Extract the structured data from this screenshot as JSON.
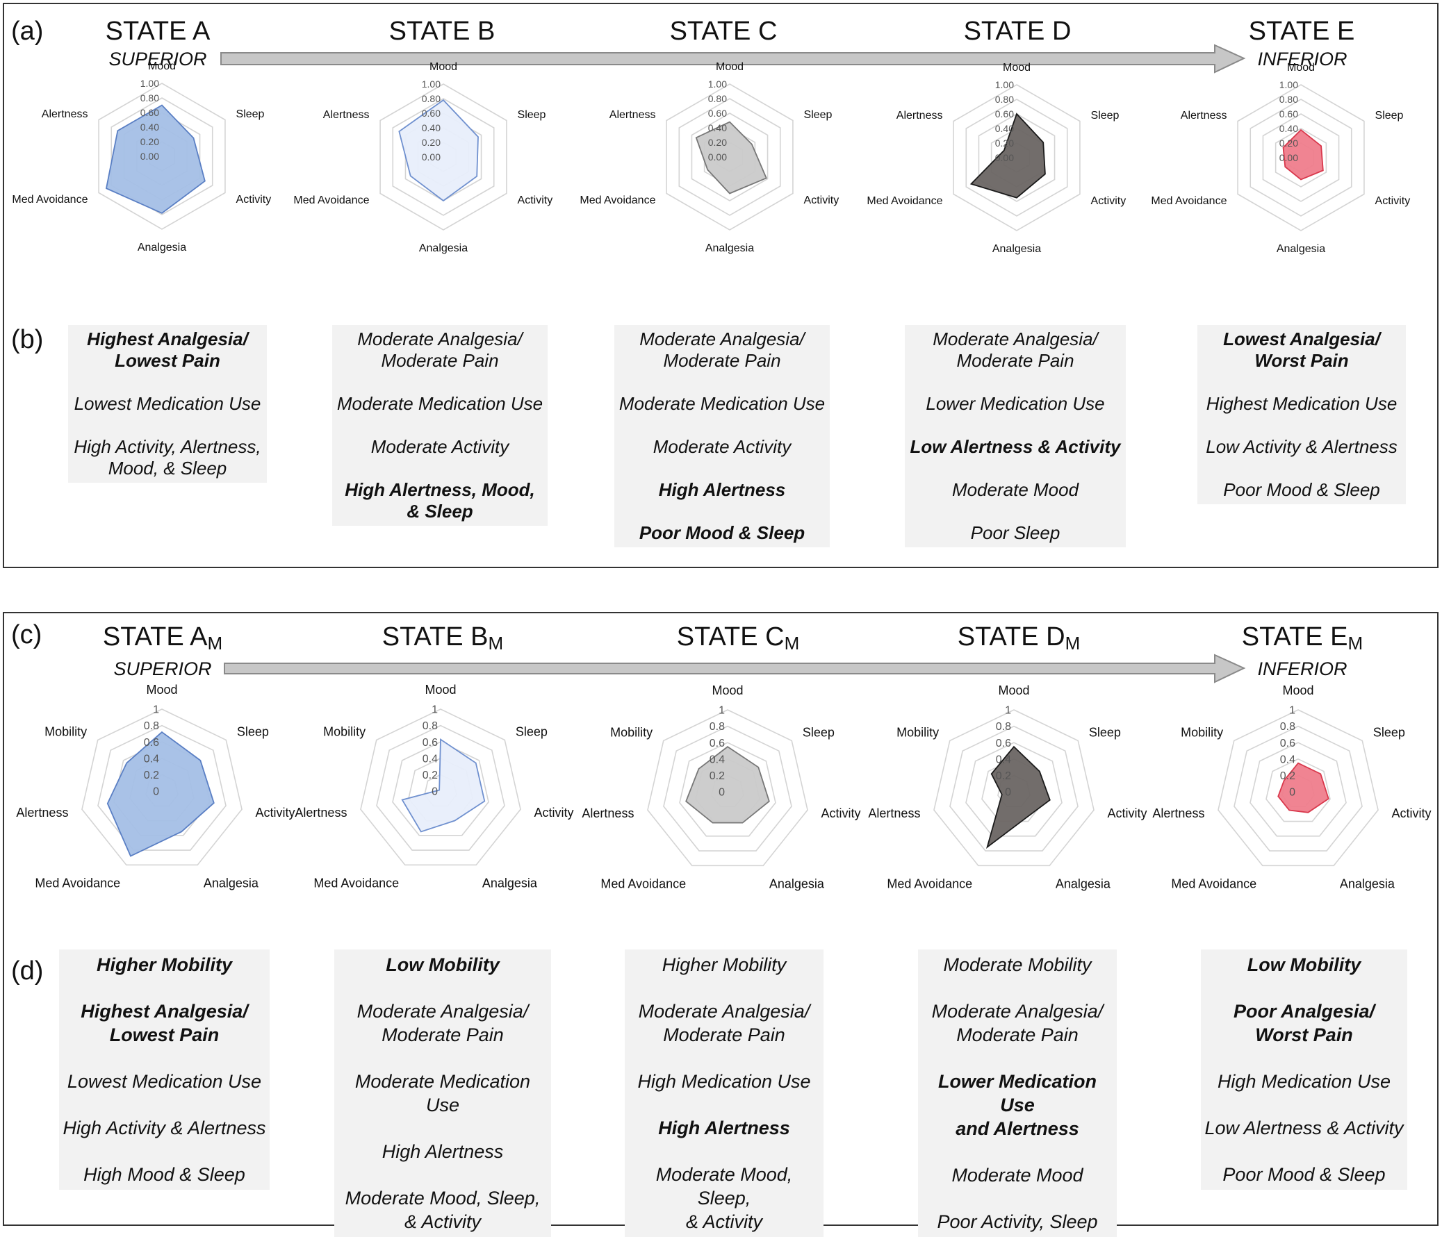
{
  "panel_labels": {
    "a": "(a)",
    "b": "(b)",
    "c": "(c)",
    "d": "(d)"
  },
  "top": {
    "states": [
      {
        "name": "STATE A",
        "sub": "SUPERIOR"
      },
      {
        "name": "STATE B",
        "sub": ""
      },
      {
        "name": "STATE C",
        "sub": ""
      },
      {
        "name": "STATE D",
        "sub": ""
      },
      {
        "name": "STATE E",
        "sub": "INFERIOR"
      }
    ],
    "descriptions": [
      {
        "lines": [
          {
            "text": "Highest Analgesia/\nLowest Pain",
            "bold": true
          },
          {
            "text": "Lowest Medication Use",
            "bold": false
          },
          {
            "text": "High Activity, Alertness,\nMood, & Sleep",
            "bold": false
          }
        ]
      },
      {
        "lines": [
          {
            "text": "Moderate Analgesia/\nModerate Pain",
            "bold": false
          },
          {
            "text": "Moderate Medication Use",
            "bold": false
          },
          {
            "text": "Moderate Activity",
            "bold": false
          },
          {
            "text": "High Alertness, Mood,\n& Sleep",
            "bold": true
          }
        ]
      },
      {
        "lines": [
          {
            "text": "Moderate Analgesia/\nModerate Pain",
            "bold": false
          },
          {
            "text": "Moderate Medication Use",
            "bold": false
          },
          {
            "text": "Moderate Activity",
            "bold": false
          },
          {
            "text": "High Alertness",
            "bold": true
          },
          {
            "text": "Poor Mood & Sleep",
            "bold": true
          }
        ]
      },
      {
        "lines": [
          {
            "text": "Moderate Analgesia/\nModerate Pain",
            "bold": false
          },
          {
            "text": "Lower Medication Use",
            "bold": false
          },
          {
            "text": "Low Alertness & Activity",
            "bold": true
          },
          {
            "text": "Moderate Mood",
            "bold": false
          },
          {
            "text": "Poor Sleep",
            "bold": false
          }
        ]
      },
      {
        "lines": [
          {
            "text": "Lowest Analgesia/\nWorst Pain",
            "bold": true
          },
          {
            "text": "Highest Medication Use",
            "bold": false
          },
          {
            "text": "Low Activity & Alertness",
            "bold": false
          },
          {
            "text": "Poor Mood & Sleep",
            "bold": false
          }
        ]
      }
    ]
  },
  "bottom": {
    "states": [
      {
        "name": "STATE A",
        "sub_letter": "M",
        "sub": "SUPERIOR"
      },
      {
        "name": "STATE B",
        "sub_letter": "M",
        "sub": ""
      },
      {
        "name": "STATE C",
        "sub_letter": "M",
        "sub": ""
      },
      {
        "name": "STATE D",
        "sub_letter": "M",
        "sub": ""
      },
      {
        "name": "STATE E",
        "sub_letter": "M",
        "sub": "INFERIOR"
      }
    ],
    "descriptions": [
      {
        "lines": [
          {
            "text": "Higher Mobility",
            "bold": true
          },
          {
            "text": "Highest Analgesia/\nLowest Pain",
            "bold": true
          },
          {
            "text": "Lowest Medication Use",
            "bold": false
          },
          {
            "text": "High Activity & Alertness",
            "bold": false
          },
          {
            "text": "High Mood & Sleep",
            "bold": false
          }
        ]
      },
      {
        "lines": [
          {
            "text": "Low Mobility",
            "bold": true
          },
          {
            "text": "Moderate Analgesia/\nModerate Pain",
            "bold": false
          },
          {
            "text": "Moderate Medication Use",
            "bold": false
          },
          {
            "text": "High Alertness",
            "bold": false
          },
          {
            "text": "Moderate Mood, Sleep,\n& Activity",
            "bold": false
          }
        ]
      },
      {
        "lines": [
          {
            "text": "Higher Mobility",
            "bold": false
          },
          {
            "text": "Moderate Analgesia/\nModerate Pain",
            "bold": false
          },
          {
            "text": "High Medication Use",
            "bold": false
          },
          {
            "text": "High Alertness",
            "bold": true
          },
          {
            "text": "Moderate Mood, Sleep,\n& Activity",
            "bold": false
          }
        ]
      },
      {
        "lines": [
          {
            "text": "Moderate Mobility",
            "bold": false
          },
          {
            "text": "Moderate Analgesia/\nModerate Pain",
            "bold": false
          },
          {
            "text": "Lower Medication Use\nand Alertness",
            "bold": true
          },
          {
            "text": "Moderate Mood",
            "bold": false
          },
          {
            "text": "Poor Activity, Sleep",
            "bold": false
          }
        ]
      },
      {
        "lines": [
          {
            "text": "Low Mobility",
            "bold": true
          },
          {
            "text": "Poor Analgesia/\nWorst Pain",
            "bold": true
          },
          {
            "text": "High Medication Use",
            "bold": false
          },
          {
            "text": "Low Alertness & Activity",
            "bold": false
          },
          {
            "text": "Poor Mood & Sleep",
            "bold": false
          }
        ]
      }
    ]
  },
  "chart_data": [
    {
      "type": "radar",
      "panel": "a",
      "axes": [
        "Mood",
        "Sleep",
        "Activity",
        "Analgesia",
        "Med Avoidance",
        "Alertness"
      ],
      "tick_labels": [
        "0.00",
        "0.20",
        "0.40",
        "0.60",
        "0.80",
        "1.00"
      ],
      "range": [
        0,
        1
      ],
      "series": [
        {
          "name": "STATE A",
          "values": [
            0.7,
            0.5,
            0.68,
            0.78,
            0.88,
            0.7
          ],
          "fill": "#a4bfe6",
          "stroke": "#5a7fc4"
        },
        {
          "name": "STATE B",
          "values": [
            0.78,
            0.55,
            0.53,
            0.6,
            0.52,
            0.7
          ],
          "fill": "#e8eefb",
          "stroke": "#6f90cf"
        },
        {
          "name": "STATE C",
          "values": [
            0.48,
            0.35,
            0.58,
            0.5,
            0.35,
            0.53
          ],
          "fill": "#cacaca",
          "stroke": "#777777"
        },
        {
          "name": "STATE D",
          "values": [
            0.6,
            0.42,
            0.45,
            0.55,
            0.72,
            0.2
          ],
          "fill": "#6a6563",
          "stroke": "#1a1a1a"
        },
        {
          "name": "STATE E",
          "values": [
            0.38,
            0.32,
            0.35,
            0.3,
            0.25,
            0.28
          ],
          "fill": "#ef7d8c",
          "stroke": "#d9384c"
        }
      ]
    },
    {
      "type": "radar",
      "panel": "c",
      "axes": [
        "Mood",
        "Sleep",
        "Activity",
        "Analgesia",
        "Med Avoidance",
        "Alertness",
        "Mobility"
      ],
      "tick_labels": [
        "0",
        "0.2",
        "0.4",
        "0.6",
        "0.8",
        "1"
      ],
      "range": [
        0,
        1
      ],
      "series": [
        {
          "name": "STATE AM",
          "values": [
            0.72,
            0.6,
            0.65,
            0.55,
            0.88,
            0.68,
            0.55
          ],
          "fill": "#a4bfe6",
          "stroke": "#5a7fc4"
        },
        {
          "name": "STATE BM",
          "values": [
            0.63,
            0.55,
            0.55,
            0.4,
            0.55,
            0.48,
            0.02
          ],
          "fill": "#e8eefb",
          "stroke": "#6f90cf"
        },
        {
          "name": "STATE CM",
          "values": [
            0.55,
            0.48,
            0.52,
            0.42,
            0.42,
            0.52,
            0.45
          ],
          "fill": "#cacaca",
          "stroke": "#777777"
        },
        {
          "name": "STATE DM",
          "values": [
            0.55,
            0.4,
            0.45,
            0.35,
            0.75,
            0.15,
            0.35
          ],
          "fill": "#6a6563",
          "stroke": "#1a1a1a"
        },
        {
          "name": "STATE EM",
          "values": [
            0.35,
            0.35,
            0.38,
            0.28,
            0.25,
            0.25,
            0.22
          ],
          "fill": "#ef7d8c",
          "stroke": "#d9384c"
        }
      ]
    }
  ]
}
